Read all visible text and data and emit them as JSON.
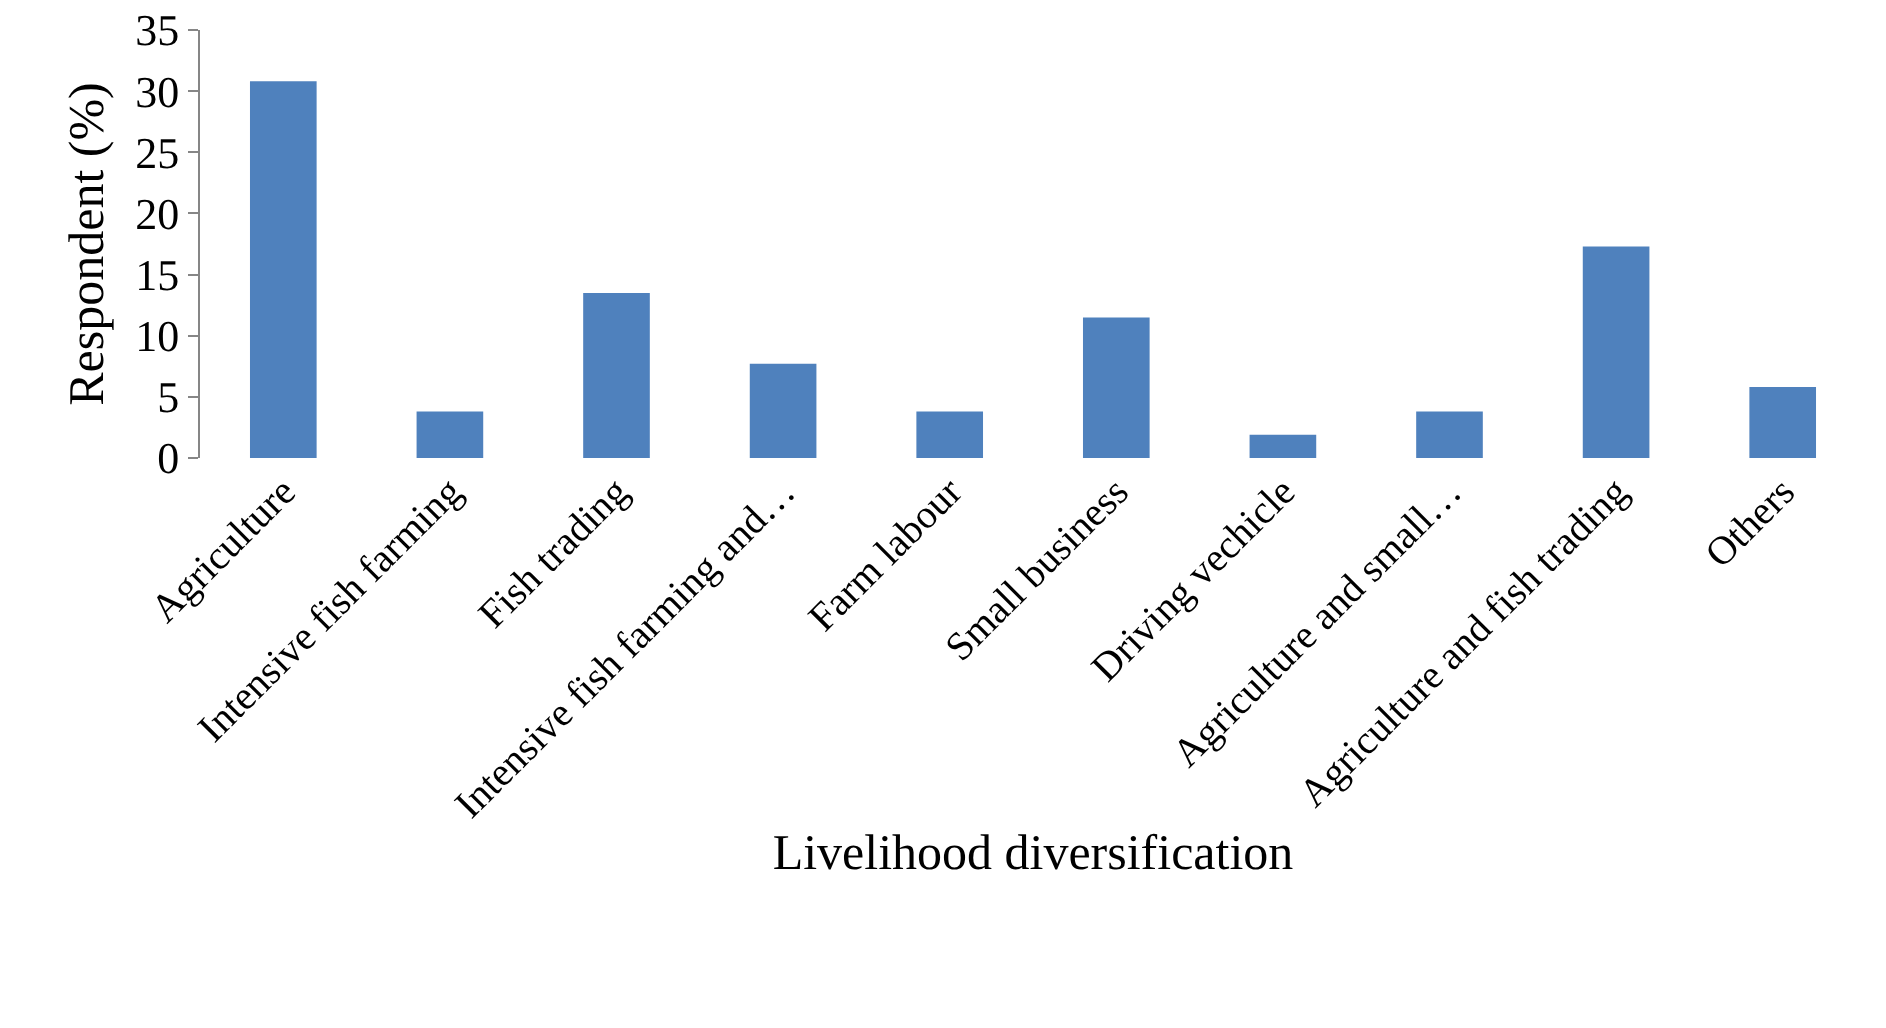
{
  "chart_data": {
    "type": "bar",
    "xlabel": "Livelihood diversification",
    "ylabel": "Respondent (%)",
    "categories": [
      "Agriculture",
      "Intensive fish farming",
      "Fish trading",
      "Intensive fish farming and…",
      "Farm labour",
      "Small business",
      "Driving vechicle",
      "Agriculture and small…",
      "Agriculture and fish trading",
      "Others"
    ],
    "values": [
      30.8,
      3.8,
      13.5,
      7.7,
      3.8,
      11.5,
      1.9,
      3.8,
      17.3,
      5.8
    ],
    "color": "#4f81bd",
    "ylim": [
      0,
      35
    ],
    "yticks": [
      0,
      5,
      10,
      15,
      20,
      25,
      30,
      35
    ],
    "grid": false,
    "legend": false
  }
}
